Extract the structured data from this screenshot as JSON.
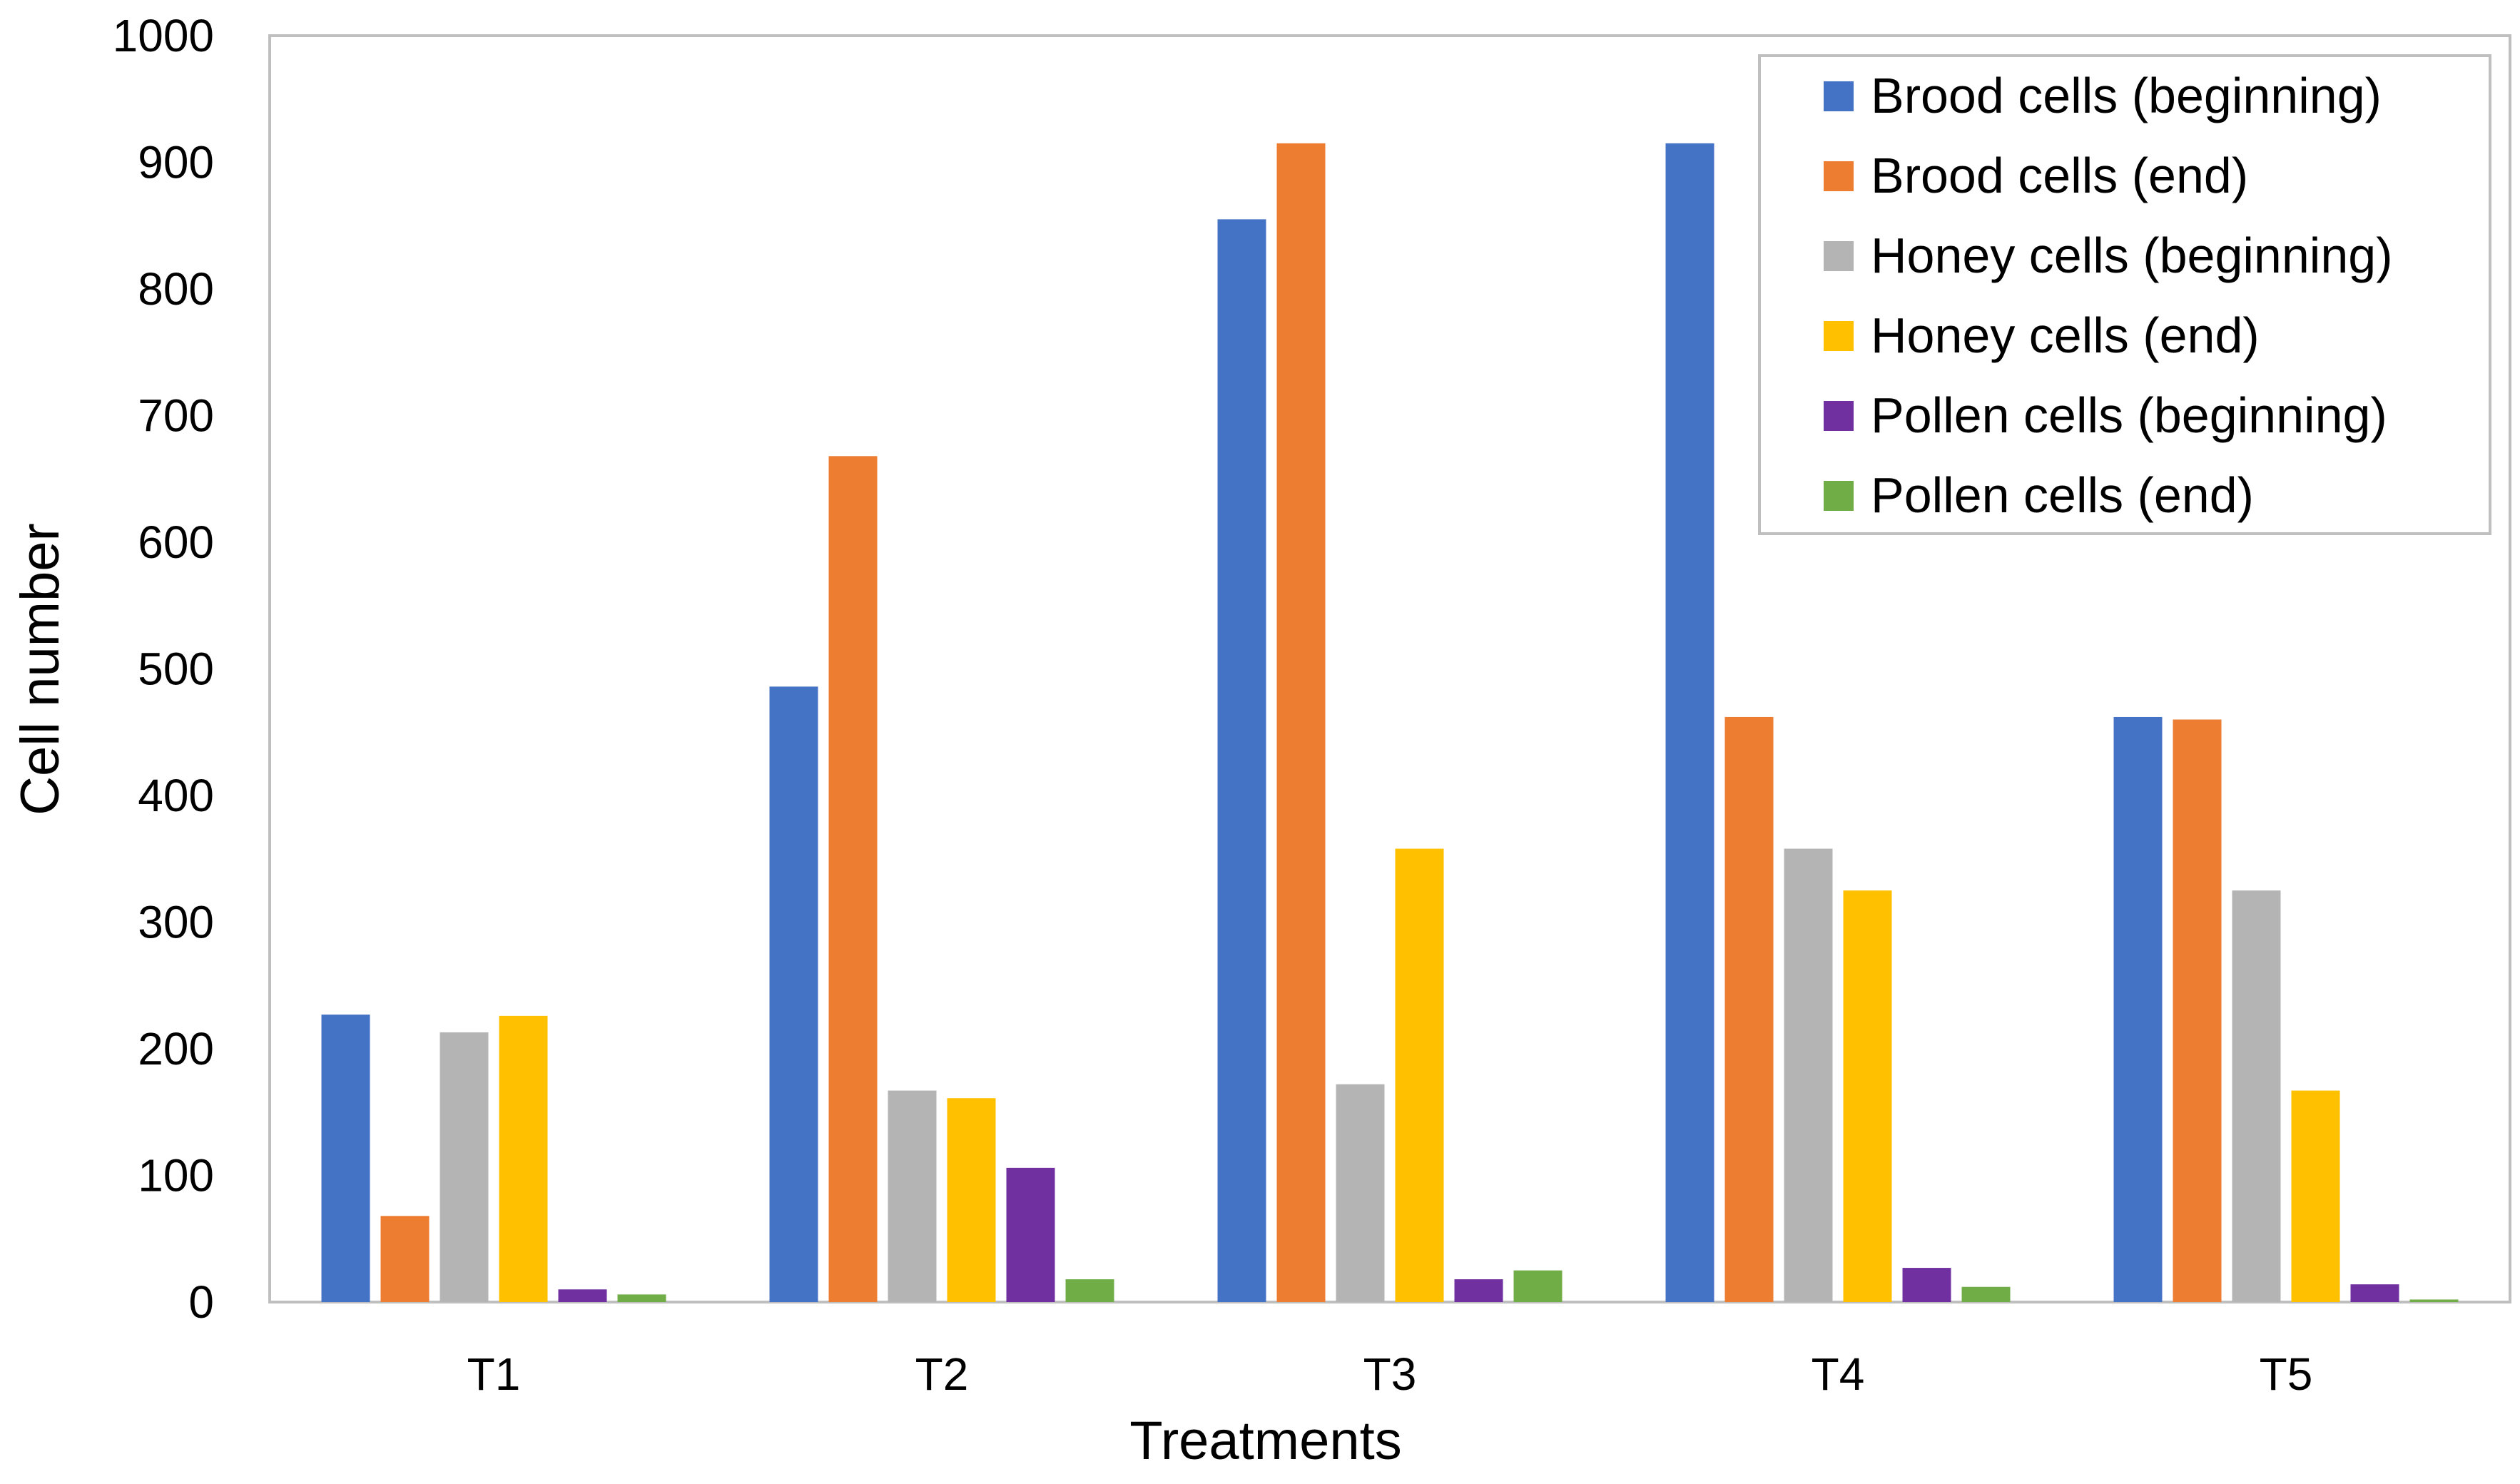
{
  "chart_data": {
    "type": "bar",
    "title": "",
    "xlabel": "Treatments",
    "ylabel": "Cell number",
    "ylim": [
      0,
      1000
    ],
    "yticks": [
      0,
      100,
      200,
      300,
      400,
      500,
      600,
      700,
      800,
      900,
      1000
    ],
    "grid": false,
    "legend_position": "top-right",
    "categories": [
      "T1",
      "T2",
      "T3",
      "T4",
      "T5"
    ],
    "series": [
      {
        "name": "Brood cells (beginning)",
        "color": "#4472C4",
        "values": [
          227,
          486,
          855,
          915,
          462
        ]
      },
      {
        "name": "Brood cells (end)",
        "color": "#ED7D31",
        "values": [
          68,
          668,
          915,
          462,
          460
        ]
      },
      {
        "name": "Honey cells (beginning)",
        "color": "#B4B4B4",
        "values": [
          213,
          167,
          172,
          358,
          325
        ]
      },
      {
        "name": "Honey cells (end)",
        "color": "#FFC000",
        "values": [
          226,
          161,
          358,
          325,
          167
        ]
      },
      {
        "name": "Pollen cells (beginning)",
        "color": "#7030A0",
        "values": [
          10,
          106,
          18,
          27,
          14
        ]
      },
      {
        "name": "Pollen cells (end)",
        "color": "#70AD47",
        "values": [
          6,
          18,
          25,
          12,
          2
        ]
      }
    ]
  }
}
